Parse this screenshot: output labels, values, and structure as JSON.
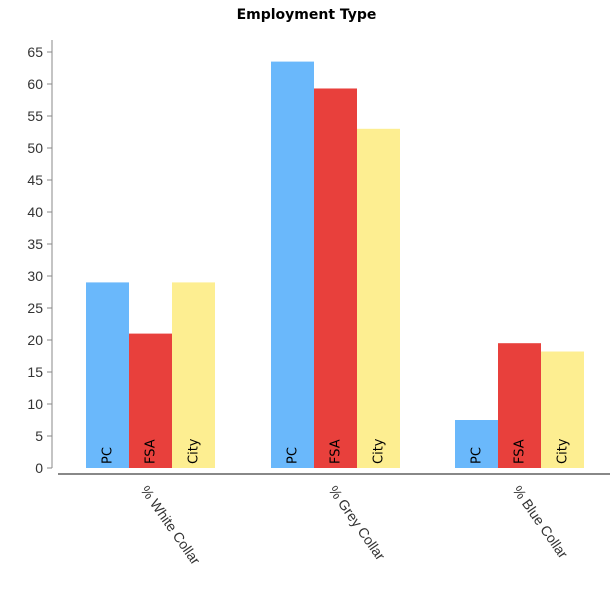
{
  "chart_data": {
    "type": "bar",
    "title": "Employment Type",
    "categories": [
      "% White Collar",
      "% Grey Collar",
      "% Blue Collar"
    ],
    "series": [
      {
        "name": "PC",
        "values": [
          29,
          63.5,
          7.5
        ]
      },
      {
        "name": "FSA",
        "values": [
          21,
          59.3,
          19.5
        ]
      },
      {
        "name": "City",
        "values": [
          29,
          53,
          18.2
        ]
      }
    ],
    "colors": [
      "#6ab8fb",
      "#e8403c",
      "#fdee91"
    ],
    "ylim": [
      0,
      65
    ],
    "yticks": [
      0,
      5,
      10,
      15,
      20,
      25,
      30,
      35,
      40,
      45,
      50,
      55,
      60,
      65
    ],
    "xlabel": "",
    "ylabel": "",
    "legend": "none",
    "grid": false
  }
}
